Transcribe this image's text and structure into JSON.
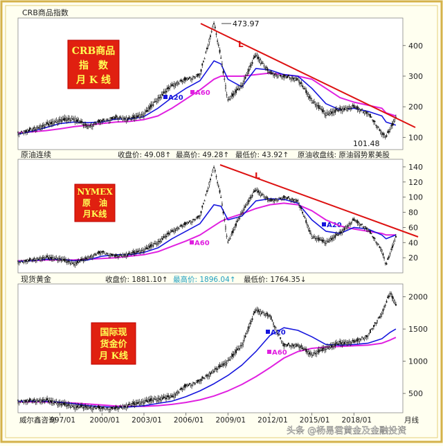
{
  "chart_data": [
    {
      "type": "line",
      "title": "CRB商品指数",
      "label_block": [
        "CRB商品",
        "指　数",
        "月 K 线"
      ],
      "annotations": {
        "peak": "473.97",
        "trough": "101.48",
        "trend": "L"
      },
      "legend": [
        "A20",
        "A60"
      ],
      "ylim": [
        60,
        490
      ],
      "yticks": [
        100,
        200,
        300,
        400
      ],
      "x": [
        1994,
        1995,
        1996,
        1997,
        1998,
        1999,
        2000,
        2001,
        2002,
        2003,
        2004,
        2005,
        2006,
        2007,
        2008,
        2008.5,
        2009,
        2010,
        2011,
        2012,
        2013,
        2014,
        2015,
        2016,
        2017,
        2018,
        2019,
        2020,
        2020.3,
        2021
      ],
      "series": [
        {
          "name": "price",
          "values": [
            115,
            125,
            140,
            155,
            160,
            135,
            155,
            165,
            160,
            175,
            225,
            270,
            290,
            305,
            474,
            360,
            220,
            270,
            370,
            310,
            300,
            290,
            220,
            175,
            190,
            200,
            180,
            115,
            101,
            165
          ]
        },
        {
          "name": "A20",
          "values": [
            110,
            120,
            132,
            145,
            150,
            148,
            150,
            160,
            160,
            168,
            195,
            230,
            260,
            285,
            350,
            340,
            290,
            265,
            325,
            320,
            305,
            300,
            260,
            210,
            190,
            195,
            185,
            170,
            150,
            140
          ]
        },
        {
          "name": "A60",
          "values": [
            115,
            118,
            122,
            128,
            135,
            140,
            145,
            150,
            152,
            158,
            170,
            195,
            225,
            255,
            290,
            300,
            300,
            300,
            305,
            310,
            305,
            300,
            290,
            260,
            230,
            215,
            205,
            195,
            180,
            170
          ]
        }
      ]
    },
    {
      "type": "line",
      "title": "原油连续",
      "stats": {
        "close": "收盘价: 49.08↑",
        "high": "最高价: 49.28↑",
        "low": "最低价: 43.92↑",
        "note": "原油收盘线: 原油弱势累美股"
      },
      "label_block": [
        "NYMEX",
        "原　油",
        "月K线"
      ],
      "annotations": {
        "trend": "L"
      },
      "legend": [
        "A20",
        "A60"
      ],
      "ylim": [
        0,
        150
      ],
      "yticks": [
        20,
        40,
        60,
        80,
        100,
        120,
        140
      ],
      "x": [
        1994,
        1995,
        1996,
        1997,
        1998,
        1999,
        2000,
        2001,
        2002,
        2003,
        2004,
        2005,
        2006,
        2007,
        2008,
        2008.5,
        2009,
        2010,
        2011,
        2012,
        2013,
        2014,
        2015,
        2016,
        2017,
        2018,
        2019,
        2020,
        2020.3,
        2021
      ],
      "series": [
        {
          "name": "price",
          "values": [
            15,
            17,
            20,
            18,
            12,
            20,
            28,
            22,
            25,
            30,
            40,
            55,
            65,
            75,
            140,
            100,
            40,
            80,
            110,
            95,
            100,
            95,
            48,
            40,
            52,
            70,
            58,
            30,
            10,
            48
          ]
        },
        {
          "name": "A20",
          "values": [
            15,
            16,
            18,
            18,
            16,
            17,
            22,
            24,
            24,
            27,
            33,
            45,
            55,
            65,
            90,
            88,
            70,
            75,
            95,
            98,
            97,
            92,
            70,
            55,
            52,
            60,
            58,
            50,
            45,
            50
          ]
        },
        {
          "name": "A60",
          "values": [
            16,
            16,
            17,
            17,
            17,
            18,
            19,
            20,
            22,
            24,
            28,
            35,
            42,
            50,
            62,
            68,
            72,
            78,
            85,
            90,
            92,
            90,
            82,
            70,
            62,
            58,
            55,
            52,
            50,
            50
          ]
        }
      ]
    },
    {
      "type": "line",
      "title": "现货黄金",
      "stats": {
        "close": "收盘价: 1881.10↑",
        "high": "最高价: 1896.04↑",
        "low": "最低价: 1764.35↓"
      },
      "label_block": [
        "国际现",
        "货金价",
        "月 K线"
      ],
      "legend": [
        "A20",
        "A60"
      ],
      "ylim": [
        200,
        2200
      ],
      "yticks": [
        500,
        1000,
        1500,
        2000
      ],
      "x": [
        1994,
        1995,
        1996,
        1997,
        1998,
        1999,
        2000,
        2001,
        2002,
        2003,
        2004,
        2005,
        2006,
        2007,
        2008,
        2009,
        2010,
        2011,
        2012,
        2013,
        2014,
        2015,
        2016,
        2017,
        2018,
        2019,
        2020,
        2020.6,
        2021
      ],
      "series": [
        {
          "name": "price",
          "values": [
            385,
            385,
            390,
            340,
            295,
            285,
            275,
            270,
            320,
            370,
            410,
            450,
            620,
            700,
            850,
            1000,
            1250,
            1800,
            1700,
            1250,
            1250,
            1100,
            1200,
            1280,
            1300,
            1400,
            1750,
            2060,
            1880
          ]
        },
        {
          "name": "A20",
          "values": [
            380,
            380,
            378,
            365,
            340,
            310,
            295,
            285,
            290,
            310,
            345,
            380,
            450,
            540,
            650,
            780,
            940,
            1150,
            1400,
            1520,
            1480,
            1380,
            1260,
            1250,
            1260,
            1280,
            1350,
            1450,
            1500
          ]
        },
        {
          "name": "A60",
          "values": [
            370,
            370,
            368,
            360,
            350,
            335,
            320,
            305,
            300,
            300,
            310,
            330,
            360,
            400,
            460,
            540,
            640,
            760,
            900,
            1050,
            1150,
            1200,
            1220,
            1230,
            1240,
            1250,
            1280,
            1330,
            1370
          ]
        }
      ]
    }
  ],
  "x_axis": {
    "ticks": [
      "997/01",
      "2000/01",
      "2003/01",
      "2006/01",
      "2009/01",
      "2012/01",
      "2015/01",
      "2018/01"
    ],
    "end_label": "月线"
  },
  "source_label": "威尔鑫咨询",
  "watermark": "头条 @杨易君黄金及金融投资",
  "colors": {
    "price": "#111111",
    "a20": "#1515dd",
    "a60": "#e020e0",
    "trend": "#dd1111",
    "badge": "#e02010",
    "badge_text": "#ffff55",
    "border": "#d4b24a",
    "frame_bg": "#fffff0"
  }
}
